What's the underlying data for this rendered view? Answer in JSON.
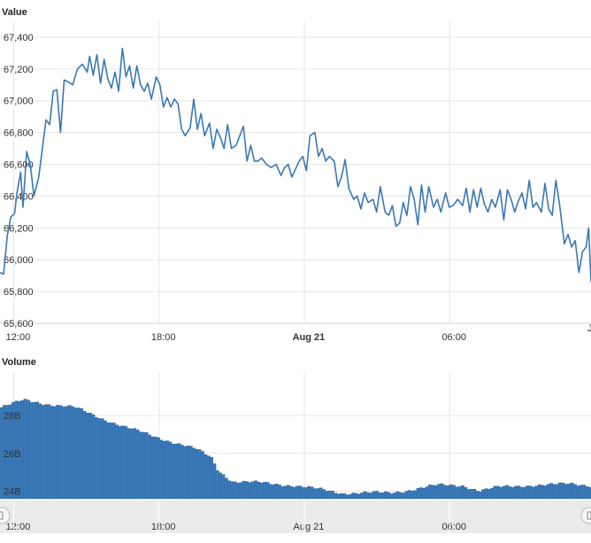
{
  "chart_data": [
    {
      "type": "line",
      "title": "Value",
      "ylim": [
        65600,
        67500
      ],
      "yticks": [
        "65,600",
        "65,800",
        "66,000",
        "66,200",
        "66,400",
        "66,600",
        "66,800",
        "67,000",
        "67,200",
        "67,400"
      ],
      "xticks": [
        {
          "label": "12:00",
          "bold": false
        },
        {
          "label": "18:00",
          "bold": false
        },
        {
          "label": "Aug 21",
          "bold": true
        },
        {
          "label": "06:00",
          "bold": false
        }
      ],
      "x_range_hours": [
        11.4,
        35.8
      ],
      "grid": true,
      "color": "#3a78b7",
      "series": [
        {
          "points": [
            [
              11.4,
              65920
            ],
            [
              11.55,
              65910
            ],
            [
              11.7,
              66150
            ],
            [
              11.85,
              66270
            ],
            [
              12.0,
              66290
            ],
            [
              12.1,
              66420
            ],
            [
              12.25,
              66550
            ],
            [
              12.35,
              66330
            ],
            [
              12.5,
              66680
            ],
            [
              12.65,
              66600
            ],
            [
              12.8,
              66400
            ],
            [
              13.0,
              66520
            ],
            [
              13.15,
              66700
            ],
            [
              13.3,
              66880
            ],
            [
              13.45,
              66850
            ],
            [
              13.6,
              67060
            ],
            [
              13.75,
              67070
            ],
            [
              13.9,
              66800
            ],
            [
              14.05,
              67130
            ],
            [
              14.2,
              67120
            ],
            [
              14.4,
              67100
            ],
            [
              14.6,
              67200
            ],
            [
              14.8,
              67230
            ],
            [
              15.0,
              67180
            ],
            [
              15.1,
              67280
            ],
            [
              15.25,
              67160
            ],
            [
              15.4,
              67290
            ],
            [
              15.55,
              67110
            ],
            [
              15.7,
              67260
            ],
            [
              15.85,
              67140
            ],
            [
              16.0,
              67080
            ],
            [
              16.15,
              67180
            ],
            [
              16.3,
              67060
            ],
            [
              16.45,
              67330
            ],
            [
              16.6,
              67150
            ],
            [
              16.75,
              67220
            ],
            [
              16.9,
              67080
            ],
            [
              17.05,
              67220
            ],
            [
              17.2,
              67100
            ],
            [
              17.35,
              67060
            ],
            [
              17.5,
              67110
            ],
            [
              17.65,
              67010
            ],
            [
              17.85,
              67150
            ],
            [
              18.0,
              67100
            ],
            [
              18.15,
              66960
            ],
            [
              18.3,
              67020
            ],
            [
              18.45,
              66960
            ],
            [
              18.6,
              67010
            ],
            [
              18.75,
              66980
            ],
            [
              18.9,
              66820
            ],
            [
              19.05,
              66780
            ],
            [
              19.25,
              66830
            ],
            [
              19.4,
              67010
            ],
            [
              19.55,
              66820
            ],
            [
              19.7,
              66920
            ],
            [
              19.85,
              66780
            ],
            [
              20.05,
              66860
            ],
            [
              20.2,
              66700
            ],
            [
              20.35,
              66820
            ],
            [
              20.5,
              66770
            ],
            [
              20.65,
              66700
            ],
            [
              20.8,
              66850
            ],
            [
              20.95,
              66700
            ],
            [
              21.15,
              66720
            ],
            [
              21.3,
              66780
            ],
            [
              21.45,
              66840
            ],
            [
              21.6,
              66620
            ],
            [
              21.75,
              66720
            ],
            [
              21.9,
              66620
            ],
            [
              22.05,
              66620
            ],
            [
              22.2,
              66640
            ],
            [
              22.4,
              66600
            ],
            [
              22.6,
              66580
            ],
            [
              22.8,
              66600
            ],
            [
              23.0,
              66530
            ],
            [
              23.15,
              66580
            ],
            [
              23.3,
              66600
            ],
            [
              23.45,
              66520
            ],
            [
              23.6,
              66570
            ],
            [
              23.75,
              66620
            ],
            [
              23.9,
              66650
            ],
            [
              24.05,
              66560
            ],
            [
              24.2,
              66780
            ],
            [
              24.4,
              66800
            ],
            [
              24.55,
              66650
            ],
            [
              24.7,
              66700
            ],
            [
              24.85,
              66620
            ],
            [
              25.0,
              66650
            ],
            [
              25.2,
              66620
            ],
            [
              25.35,
              66460
            ],
            [
              25.5,
              66520
            ],
            [
              25.65,
              66630
            ],
            [
              25.8,
              66450
            ],
            [
              26.0,
              66380
            ],
            [
              26.15,
              66400
            ],
            [
              26.3,
              66320
            ],
            [
              26.45,
              66420
            ],
            [
              26.6,
              66360
            ],
            [
              26.8,
              66380
            ],
            [
              26.95,
              66300
            ],
            [
              27.1,
              66460
            ],
            [
              27.3,
              66300
            ],
            [
              27.45,
              66280
            ],
            [
              27.6,
              66340
            ],
            [
              27.75,
              66210
            ],
            [
              27.9,
              66230
            ],
            [
              28.05,
              66360
            ],
            [
              28.2,
              66280
            ],
            [
              28.35,
              66460
            ],
            [
              28.5,
              66380
            ],
            [
              28.65,
              66220
            ],
            [
              28.8,
              66470
            ],
            [
              28.95,
              66300
            ],
            [
              29.1,
              66460
            ],
            [
              29.3,
              66330
            ],
            [
              29.45,
              66380
            ],
            [
              29.6,
              66300
            ],
            [
              29.8,
              66420
            ],
            [
              29.95,
              66330
            ],
            [
              30.1,
              66340
            ],
            [
              30.3,
              66380
            ],
            [
              30.5,
              66340
            ],
            [
              30.65,
              66450
            ],
            [
              30.8,
              66300
            ],
            [
              30.95,
              66440
            ],
            [
              31.1,
              66330
            ],
            [
              31.25,
              66450
            ],
            [
              31.4,
              66350
            ],
            [
              31.55,
              66300
            ],
            [
              31.7,
              66380
            ],
            [
              31.85,
              66330
            ],
            [
              32.05,
              66440
            ],
            [
              32.2,
              66250
            ],
            [
              32.35,
              66440
            ],
            [
              32.5,
              66380
            ],
            [
              32.65,
              66300
            ],
            [
              32.8,
              66370
            ],
            [
              32.95,
              66420
            ],
            [
              33.1,
              66320
            ],
            [
              33.25,
              66500
            ],
            [
              33.4,
              66330
            ],
            [
              33.55,
              66360
            ],
            [
              33.75,
              66300
            ],
            [
              33.9,
              66480
            ],
            [
              34.05,
              66320
            ],
            [
              34.2,
              66280
            ],
            [
              34.35,
              66500
            ],
            [
              34.5,
              66350
            ],
            [
              34.7,
              66100
            ],
            [
              34.85,
              66160
            ],
            [
              35.0,
              66080
            ],
            [
              35.15,
              66120
            ],
            [
              35.3,
              65920
            ],
            [
              35.45,
              66050
            ],
            [
              35.6,
              66080
            ],
            [
              35.7,
              66200
            ],
            [
              35.8,
              65860
            ]
          ]
        }
      ]
    },
    {
      "type": "bar",
      "title": "Volume",
      "ylim": [
        23.6,
        30.3
      ],
      "yticks": [
        "24B",
        "26B",
        "28B"
      ],
      "xticks": [
        {
          "label": "12:00",
          "bold": false
        },
        {
          "label": "18:00",
          "bold": false
        },
        {
          "label": "Aug 21",
          "bold": false
        },
        {
          "label": "06:00",
          "bold": false
        }
      ],
      "x_range_hours": [
        11.4,
        35.8
      ],
      "grid": true,
      "color": "#3a78b7",
      "knots": [
        [
          11.4,
          28.4
        ],
        [
          12.4,
          28.8
        ],
        [
          13.4,
          28.6
        ],
        [
          14.5,
          28.4
        ],
        [
          15.5,
          27.9
        ],
        [
          16.5,
          27.4
        ],
        [
          17.5,
          27.0
        ],
        [
          18.5,
          26.6
        ],
        [
          19.5,
          26.2
        ],
        [
          20.1,
          25.8
        ],
        [
          20.4,
          25.1
        ],
        [
          21.0,
          24.5
        ],
        [
          22.5,
          24.4
        ],
        [
          23.5,
          24.3
        ],
        [
          24.5,
          24.1
        ],
        [
          25.5,
          23.9
        ],
        [
          26.5,
          23.9
        ],
        [
          27.5,
          23.9
        ],
        [
          28.5,
          24.1
        ],
        [
          29.5,
          24.3
        ],
        [
          30.5,
          24.3
        ],
        [
          31.2,
          24.0
        ],
        [
          32.0,
          24.2
        ],
        [
          33.0,
          24.3
        ],
        [
          34.0,
          24.3
        ],
        [
          35.0,
          24.4
        ],
        [
          35.8,
          24.3
        ]
      ]
    }
  ]
}
